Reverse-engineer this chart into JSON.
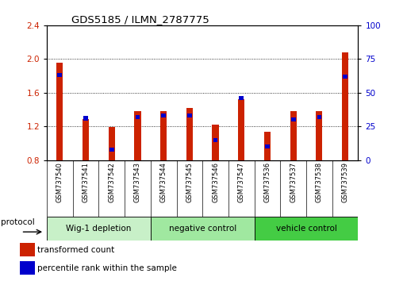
{
  "title": "GDS5185 / ILMN_2787775",
  "samples": [
    "GSM737540",
    "GSM737541",
    "GSM737542",
    "GSM737543",
    "GSM737544",
    "GSM737545",
    "GSM737546",
    "GSM737547",
    "GSM737536",
    "GSM737537",
    "GSM737538",
    "GSM737539"
  ],
  "transformed_counts": [
    1.96,
    1.285,
    1.19,
    1.38,
    1.38,
    1.42,
    1.22,
    1.52,
    1.14,
    1.38,
    1.38,
    2.08
  ],
  "percentile_ranks": [
    63,
    31,
    8,
    32,
    33,
    33,
    15,
    46,
    10,
    30,
    32,
    62
  ],
  "ylim_left": [
    0.8,
    2.4
  ],
  "ylim_right": [
    0,
    100
  ],
  "yticks_left": [
    0.8,
    1.2,
    1.6,
    2.0,
    2.4
  ],
  "yticks_right": [
    0,
    25,
    50,
    75,
    100
  ],
  "bar_color_red": "#cc2200",
  "bar_color_blue": "#0000cc",
  "groups": [
    {
      "label": "Wig-1 depletion",
      "indices": [
        0,
        1,
        2,
        3
      ],
      "color": "#c8f0c8"
    },
    {
      "label": "negative control",
      "indices": [
        4,
        5,
        6,
        7
      ],
      "color": "#a0e8a0"
    },
    {
      "label": "vehicle control",
      "indices": [
        8,
        9,
        10,
        11
      ],
      "color": "#44cc44"
    }
  ],
  "protocol_label": "protocol",
  "legend_red": "transformed count",
  "legend_blue": "percentile rank within the sample",
  "bar_width": 0.25,
  "base_value": 0.8,
  "tick_label_color_left": "#cc2200",
  "tick_label_color_right": "#0000cc",
  "grid_color": "#000000",
  "background_chart": "#ffffff",
  "background_xtick": "#cccccc"
}
